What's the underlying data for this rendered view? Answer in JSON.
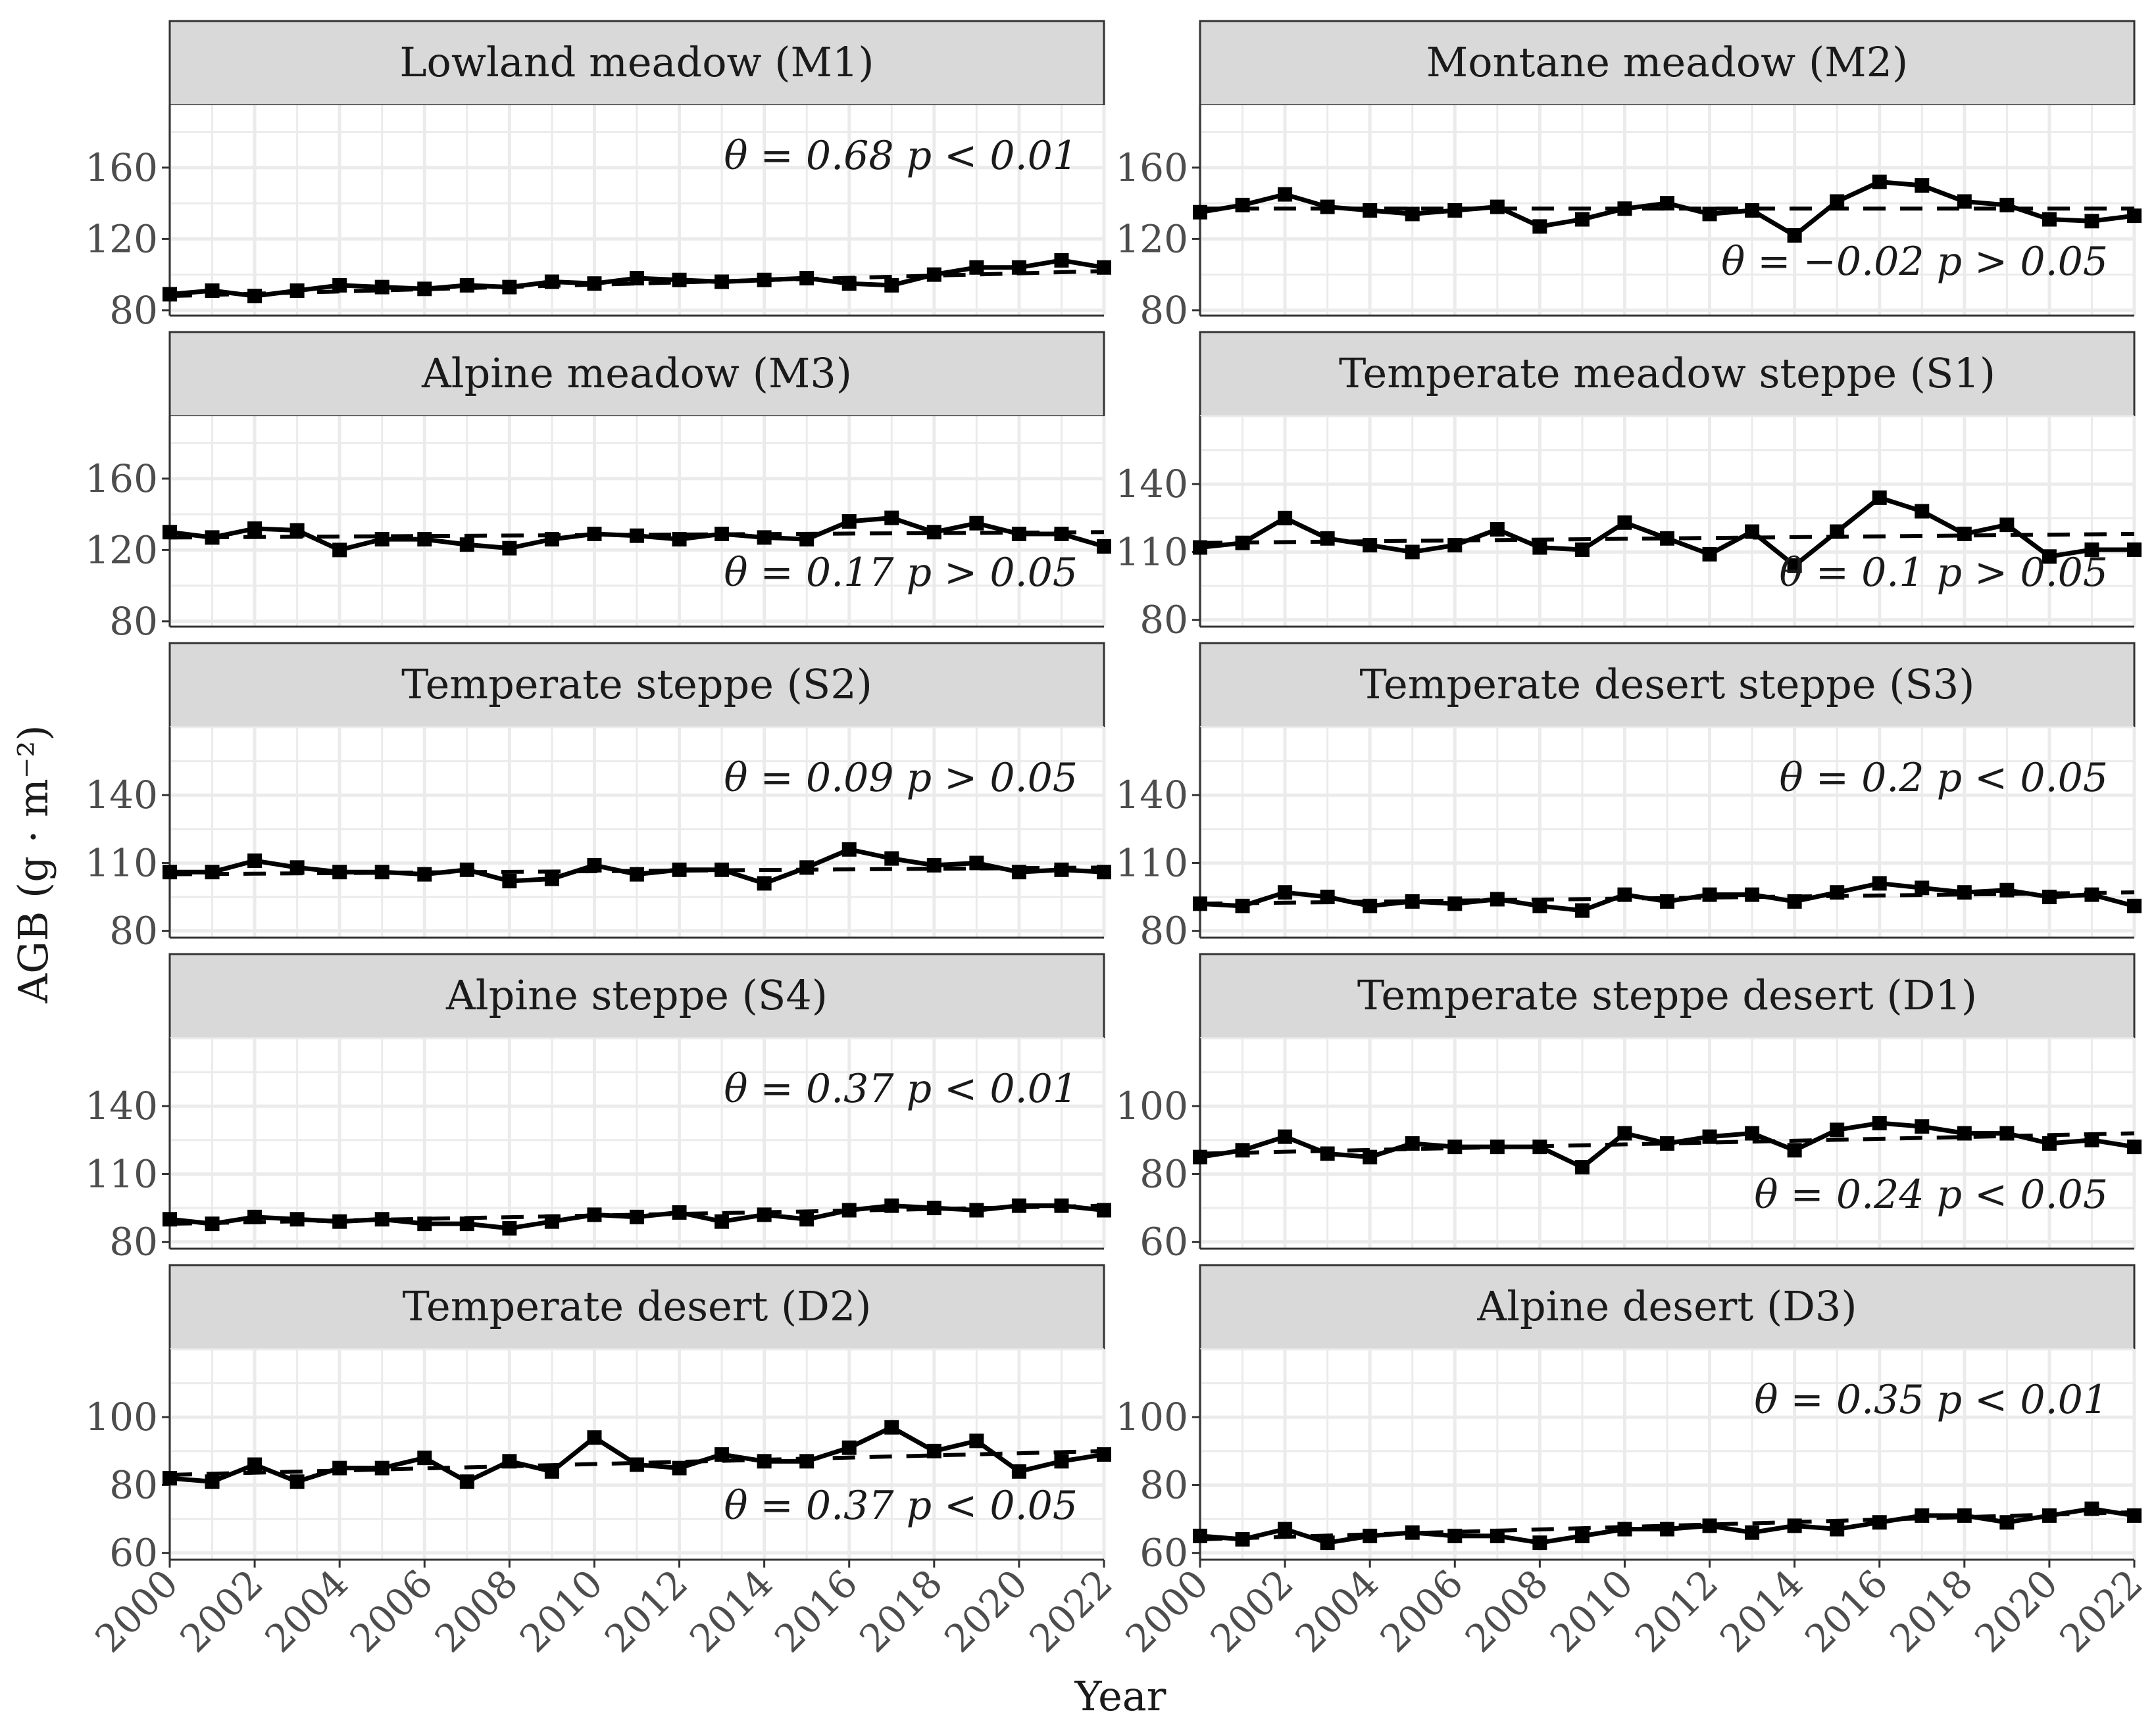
{
  "chart_data": {
    "type": "line",
    "xlabel": "Year",
    "ylabel": "AGB  (g · m⁻²)",
    "x": [
      2000,
      2001,
      2002,
      2003,
      2004,
      2005,
      2006,
      2007,
      2008,
      2009,
      2010,
      2011,
      2012,
      2013,
      2014,
      2015,
      2016,
      2017,
      2018,
      2019,
      2020,
      2021,
      2022
    ],
    "x_ticks": [
      "2000",
      "2002",
      "2004",
      "2006",
      "2008",
      "2010",
      "2012",
      "2014",
      "2016",
      "2018",
      "2020",
      "2022"
    ],
    "panels": [
      {
        "title": "Lowland meadow (M1)",
        "ylim": [
          77,
          195
        ],
        "yticks": [
          80,
          120,
          160
        ],
        "values": [
          89,
          91,
          88,
          91,
          94,
          93,
          92,
          94,
          93,
          96,
          95,
          98,
          97,
          96,
          97,
          98,
          95,
          94,
          100,
          104,
          104,
          108,
          104
        ],
        "trend": [
          88,
          102
        ],
        "annotation": "θ = 0.68  p < 0.01",
        "annotation_pos": "top-right"
      },
      {
        "title": "Montane meadow (M2)",
        "ylim": [
          77,
          195
        ],
        "yticks": [
          80,
          120,
          160
        ],
        "values": [
          135,
          139,
          145,
          138,
          136,
          134,
          136,
          138,
          127,
          131,
          137,
          140,
          134,
          136,
          122,
          141,
          152,
          150,
          141,
          139,
          131,
          130,
          133
        ],
        "trend": [
          137,
          137
        ],
        "annotation": "θ = −0.02  p > 0.05",
        "annotation_pos": "bottom-right"
      },
      {
        "title": "Alpine meadow (M3)",
        "ylim": [
          77,
          195
        ],
        "yticks": [
          80,
          120,
          160
        ],
        "values": [
          130,
          127,
          132,
          131,
          120,
          126,
          126,
          123,
          121,
          126,
          129,
          128,
          126,
          129,
          127,
          126,
          136,
          138,
          130,
          135,
          129,
          129,
          122
        ],
        "trend": [
          127,
          130
        ],
        "annotation": "θ = 0.17  p > 0.05",
        "annotation_pos": "bottom-right"
      },
      {
        "title": "Temperate meadow steppe (S1)",
        "ylim": [
          77,
          170
        ],
        "yticks": [
          80,
          110,
          140
        ],
        "values": [
          112,
          114,
          125,
          116,
          113,
          110,
          113,
          120,
          112,
          111,
          123,
          116,
          109,
          119,
          104,
          119,
          134,
          128,
          118,
          122,
          108,
          111,
          111
        ],
        "trend": [
          114,
          118
        ],
        "annotation": "θ = 0.1  p > 0.05",
        "annotation_pos": "bottom-right"
      },
      {
        "title": "Temperate steppe (S2)",
        "ylim": [
          77,
          170
        ],
        "yticks": [
          80,
          110,
          140
        ],
        "values": [
          106,
          106,
          111,
          108,
          106,
          106,
          105,
          107,
          102,
          103,
          109,
          105,
          107,
          107,
          101,
          108,
          116,
          112,
          109,
          110,
          106,
          107,
          106
        ],
        "trend": [
          105,
          108
        ],
        "annotation": "θ = 0.09  p > 0.05",
        "annotation_pos": "top-right"
      },
      {
        "title": "Temperate desert steppe (S3)",
        "ylim": [
          77,
          170
        ],
        "yticks": [
          80,
          110,
          140
        ],
        "values": [
          92,
          91,
          97,
          95,
          91,
          93,
          92,
          94,
          91,
          89,
          96,
          93,
          96,
          96,
          93,
          97,
          101,
          99,
          97,
          98,
          95,
          96,
          91
        ],
        "trend": [
          92,
          97
        ],
        "annotation": "θ = 0.2  p < 0.05",
        "annotation_pos": "top-right"
      },
      {
        "title": "Alpine steppe (S4)",
        "ylim": [
          77,
          170
        ],
        "yticks": [
          80,
          110,
          140
        ],
        "values": [
          90,
          88,
          91,
          90,
          89,
          90,
          88,
          88,
          86,
          89,
          92,
          91,
          93,
          89,
          92,
          90,
          94,
          96,
          95,
          94,
          96,
          96,
          94
        ],
        "trend": [
          88,
          96
        ],
        "annotation": "θ = 0.37  p < 0.01",
        "annotation_pos": "top-right"
      },
      {
        "title": "Temperate steppe desert (D1)",
        "ylim": [
          58,
          120
        ],
        "yticks": [
          60,
          80,
          100
        ],
        "values": [
          85,
          87,
          91,
          86,
          85,
          89,
          88,
          88,
          88,
          82,
          92,
          89,
          91,
          92,
          87,
          93,
          95,
          94,
          92,
          92,
          89,
          90,
          88
        ],
        "trend": [
          86,
          92
        ],
        "annotation": "θ = 0.24  p < 0.05",
        "annotation_pos": "bottom-right"
      },
      {
        "title": "Temperate desert (D2)",
        "ylim": [
          58,
          120
        ],
        "yticks": [
          60,
          80,
          100
        ],
        "values": [
          82,
          81,
          86,
          81,
          85,
          85,
          88,
          81,
          87,
          84,
          94,
          86,
          85,
          89,
          87,
          87,
          91,
          97,
          90,
          93,
          84,
          87,
          89
        ],
        "trend": [
          83,
          90
        ],
        "annotation": "θ = 0.37  p < 0.05",
        "annotation_pos": "bottom-right"
      },
      {
        "title": "Alpine desert (D3)",
        "ylim": [
          58,
          120
        ],
        "yticks": [
          60,
          80,
          100
        ],
        "values": [
          65,
          64,
          67,
          63,
          65,
          66,
          65,
          65,
          63,
          65,
          67,
          67,
          68,
          66,
          68,
          67,
          69,
          71,
          71,
          69,
          71,
          73,
          71
        ],
        "trend": [
          64,
          72
        ],
        "annotation": "θ = 0.35  p < 0.01",
        "annotation_pos": "top-right"
      }
    ]
  }
}
